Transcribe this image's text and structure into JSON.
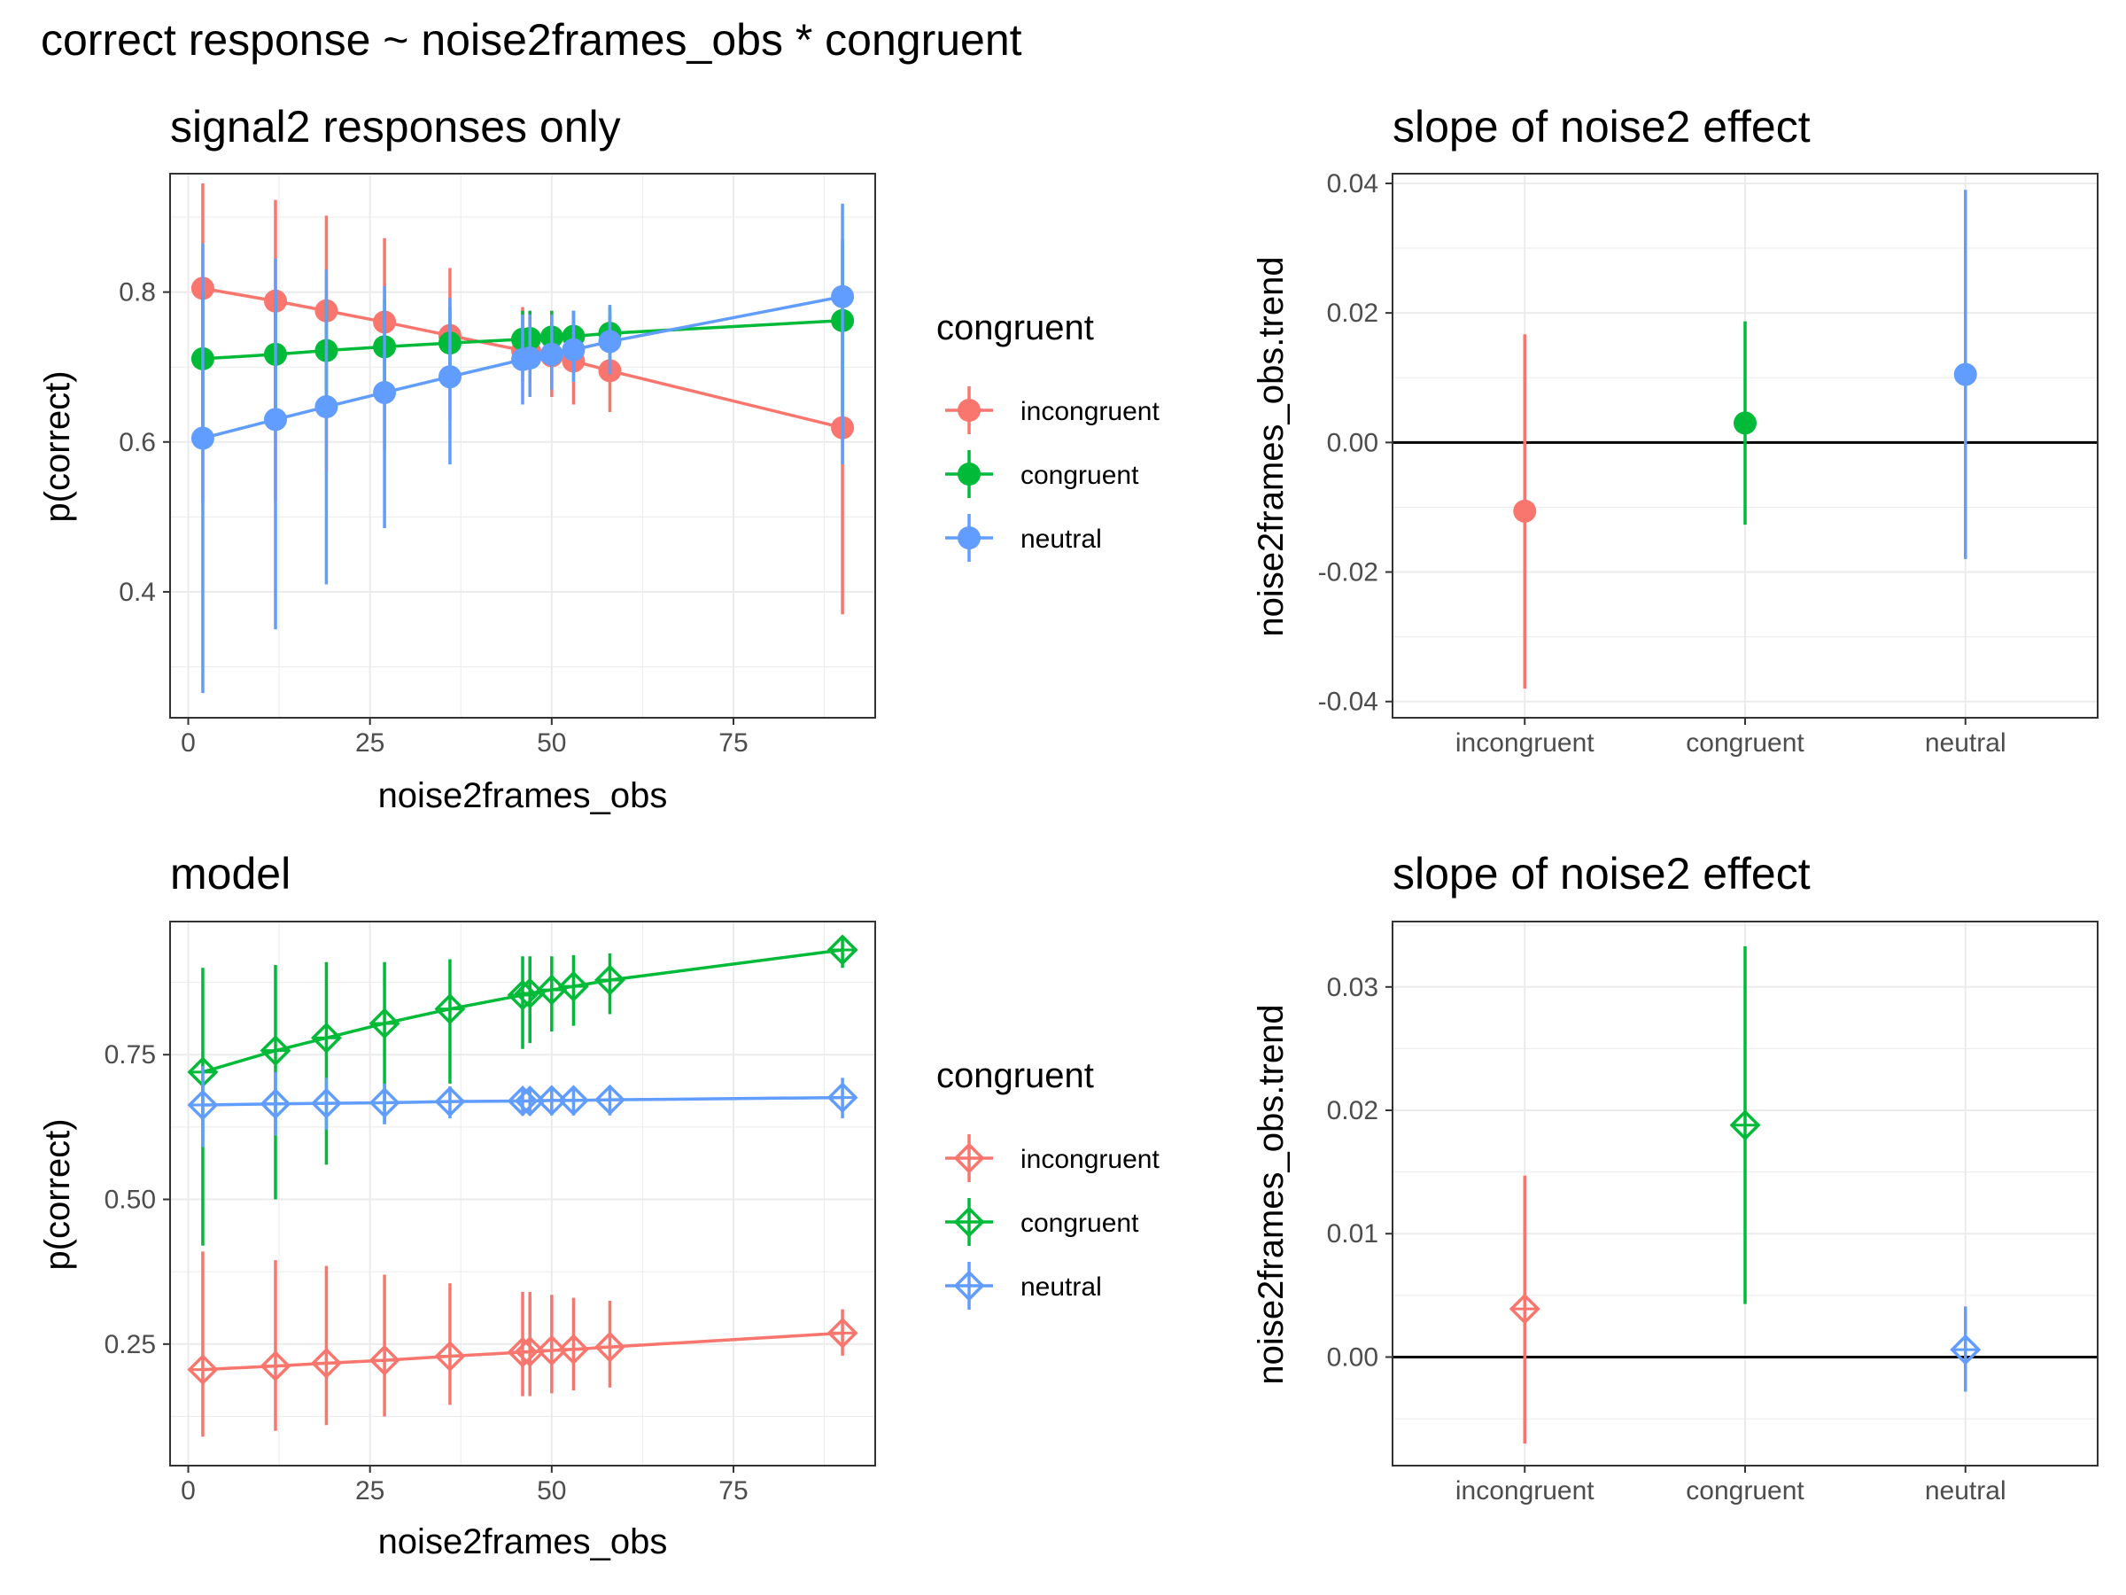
{
  "title": "correct response ~ noise2frames_obs * congruent",
  "colors": {
    "incongruent": "#F8766D",
    "congruent": "#00BA38",
    "neutral": "#619CFF"
  },
  "legend": {
    "title": "congruent",
    "items": [
      {
        "key": "incongruent",
        "label": "incongruent"
      },
      {
        "key": "congruent",
        "label": "congruent"
      },
      {
        "key": "neutral",
        "label": "neutral"
      }
    ]
  },
  "chart_data": [
    {
      "type": "line",
      "panel": "top-left",
      "title": "signal2 responses only",
      "xlabel": "noise2frames_obs",
      "ylabel": "p(correct)",
      "xlim": [
        -2.5,
        94.5
      ],
      "ylim": [
        0.232,
        0.958
      ],
      "x_ticks": [
        0,
        25,
        50,
        75
      ],
      "y_ticks": [
        0.4,
        0.6,
        0.8
      ],
      "y_tick_labels": [
        "0.4",
        "0.6",
        "0.8"
      ],
      "marker": "circle",
      "grid": true,
      "legend_position": "right",
      "x": [
        2,
        12,
        19,
        27,
        36,
        46,
        47,
        50,
        53,
        58,
        90
      ],
      "series": [
        {
          "name": "incongruent",
          "key": "incongruent",
          "y": [
            0.805,
            0.788,
            0.775,
            0.76,
            0.742,
            0.722,
            0.72,
            0.715,
            0.708,
            0.695,
            0.619
          ],
          "lo": [
            0.52,
            0.52,
            0.56,
            0.59,
            0.63,
            0.68,
            0.68,
            0.66,
            0.65,
            0.64,
            0.37
          ],
          "hi": [
            0.945,
            0.923,
            0.902,
            0.872,
            0.832,
            0.78,
            0.775,
            0.775,
            0.775,
            0.77,
            0.865
          ]
        },
        {
          "name": "congruent",
          "key": "congruent",
          "y": [
            0.711,
            0.717,
            0.722,
            0.727,
            0.732,
            0.737,
            0.738,
            0.74,
            0.741,
            0.745,
            0.762
          ],
          "lo": [
            0.62,
            0.64,
            0.65,
            0.66,
            0.68,
            0.7,
            0.7,
            0.71,
            0.71,
            0.71,
            0.64
          ],
          "hi": [
            0.8,
            0.79,
            0.79,
            0.79,
            0.78,
            0.775,
            0.775,
            0.775,
            0.775,
            0.78,
            0.87
          ]
        },
        {
          "name": "neutral",
          "key": "neutral",
          "y": [
            0.605,
            0.63,
            0.647,
            0.666,
            0.687,
            0.71,
            0.712,
            0.717,
            0.723,
            0.734,
            0.794
          ],
          "lo": [
            0.265,
            0.35,
            0.41,
            0.485,
            0.57,
            0.65,
            0.66,
            0.67,
            0.68,
            0.69,
            0.57
          ],
          "hi": [
            0.865,
            0.845,
            0.83,
            0.808,
            0.792,
            0.77,
            0.77,
            0.77,
            0.775,
            0.783,
            0.918
          ]
        }
      ]
    },
    {
      "type": "scatter",
      "panel": "top-right",
      "title": "slope of noise2 effect",
      "xlabel": "",
      "ylabel": "noise2frames_obs.trend",
      "categories": [
        "incongruent",
        "congruent",
        "neutral"
      ],
      "ylim": [
        -0.0425,
        0.0415
      ],
      "y_ticks": [
        -0.04,
        -0.02,
        0.0,
        0.02,
        0.04
      ],
      "y_tick_labels": [
        "-0.04",
        "-0.02",
        "0.00",
        "0.02",
        "0.04"
      ],
      "reference_line": 0,
      "marker": "circle",
      "grid": true,
      "values": [
        -0.0106,
        0.003,
        0.0105
      ],
      "lo": [
        -0.038,
        -0.0127,
        -0.018
      ],
      "hi": [
        0.0167,
        0.0187,
        0.039
      ]
    },
    {
      "type": "line",
      "panel": "bottom-left",
      "title": "model",
      "xlabel": "noise2frames_obs",
      "ylabel": "p(correct)",
      "xlim": [
        -2.5,
        94.5
      ],
      "ylim": [
        0.04,
        0.98
      ],
      "x_ticks": [
        0,
        25,
        50,
        75
      ],
      "y_ticks": [
        0.25,
        0.5,
        0.75
      ],
      "y_tick_labels": [
        "0.25",
        "0.50",
        "0.75"
      ],
      "marker": "diamond-plus",
      "grid": true,
      "legend_position": "right",
      "x": [
        2,
        12,
        19,
        27,
        36,
        46,
        47,
        50,
        53,
        58,
        90
      ],
      "series": [
        {
          "name": "incongruent",
          "key": "incongruent",
          "y": [
            0.206,
            0.212,
            0.217,
            0.222,
            0.229,
            0.236,
            0.237,
            0.239,
            0.241,
            0.245,
            0.269
          ],
          "lo": [
            0.09,
            0.1,
            0.11,
            0.125,
            0.145,
            0.16,
            0.16,
            0.165,
            0.17,
            0.175,
            0.23
          ],
          "hi": [
            0.41,
            0.395,
            0.385,
            0.37,
            0.355,
            0.34,
            0.34,
            0.335,
            0.33,
            0.325,
            0.31
          ]
        },
        {
          "name": "congruent",
          "key": "congruent",
          "y": [
            0.72,
            0.757,
            0.779,
            0.804,
            0.829,
            0.853,
            0.856,
            0.862,
            0.868,
            0.879,
            0.931
          ],
          "lo": [
            0.42,
            0.5,
            0.56,
            0.63,
            0.7,
            0.76,
            0.77,
            0.79,
            0.8,
            0.82,
            0.9
          ],
          "hi": [
            0.9,
            0.905,
            0.91,
            0.91,
            0.915,
            0.92,
            0.92,
            0.92,
            0.922,
            0.925,
            0.95
          ]
        },
        {
          "name": "neutral",
          "key": "neutral",
          "y": [
            0.663,
            0.665,
            0.666,
            0.667,
            0.669,
            0.67,
            0.67,
            0.671,
            0.671,
            0.672,
            0.676
          ],
          "lo": [
            0.59,
            0.61,
            0.62,
            0.63,
            0.64,
            0.645,
            0.645,
            0.645,
            0.645,
            0.645,
            0.64
          ],
          "hi": [
            0.73,
            0.72,
            0.71,
            0.7,
            0.695,
            0.69,
            0.69,
            0.69,
            0.69,
            0.695,
            0.71
          ]
        }
      ]
    },
    {
      "type": "scatter",
      "panel": "bottom-right",
      "title": "slope of noise2 effect",
      "xlabel": "",
      "ylabel": "noise2frames_obs.trend",
      "categories": [
        "incongruent",
        "congruent",
        "neutral"
      ],
      "ylim": [
        -0.0088,
        0.0353
      ],
      "y_ticks": [
        0.0,
        0.01,
        0.02,
        0.03
      ],
      "y_tick_labels": [
        "0.00",
        "0.01",
        "0.02",
        "0.03"
      ],
      "reference_line": 0,
      "marker": "diamond-plus",
      "grid": true,
      "values": [
        0.0039,
        0.0188,
        0.0006
      ],
      "lo": [
        -0.007,
        0.0043,
        -0.0028
      ],
      "hi": [
        0.0147,
        0.0333,
        0.0041
      ]
    }
  ]
}
